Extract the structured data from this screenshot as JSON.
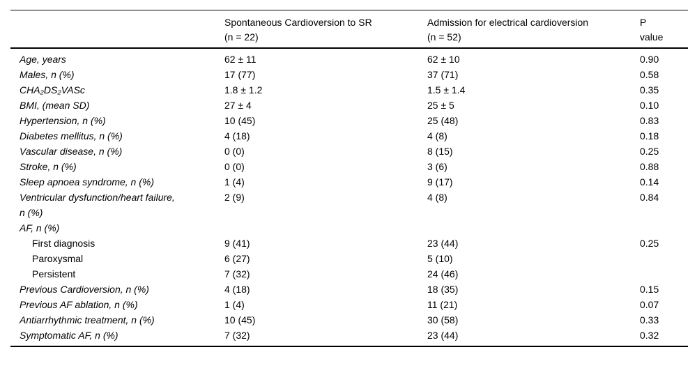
{
  "header": {
    "col_category": "",
    "col_spontaneous": "Spontaneous Cardioversion to SR\n(n = 22)",
    "col_admission": "Admission for electrical cardioversion\n(n = 52)",
    "col_pvalue": "P\nvalue"
  },
  "rows": [
    {
      "label": "Age, years",
      "spontaneous": "62 ± 11",
      "admission": "62 ± 10",
      "p_value": "0.90",
      "italic": true,
      "indent": false
    },
    {
      "label": "Males, n (%)",
      "spontaneous": "17 (77)",
      "admission": "37 (71)",
      "p_value": "0.58",
      "italic": true,
      "indent": false
    },
    {
      "label": "CHA₂DS₂VASc",
      "spontaneous": "1.8 ± 1.2",
      "admission": "1.5 ± 1.4",
      "p_value": "0.35",
      "italic": true,
      "indent": false
    },
    {
      "label": "BMI, (mean SD)",
      "spontaneous": "27 ± 4",
      "admission": "25 ± 5",
      "p_value": "0.10",
      "italic": true,
      "indent": false
    },
    {
      "label": "Hypertension, n (%)",
      "spontaneous": "10 (45)",
      "admission": "25 (48)",
      "p_value": "0.83",
      "italic": true,
      "indent": false
    },
    {
      "label": "Diabetes mellitus, n (%)",
      "spontaneous": "4 (18)",
      "admission": "4 (8)",
      "p_value": "0.18",
      "italic": true,
      "indent": false
    },
    {
      "label": "Vascular disease, n (%)",
      "spontaneous": "0 (0)",
      "admission": "8 (15)",
      "p_value": "0.25",
      "italic": true,
      "indent": false
    },
    {
      "label": "Stroke, n (%)",
      "spontaneous": "0 (0)",
      "admission": "3 (6)",
      "p_value": "0.88",
      "italic": true,
      "indent": false
    },
    {
      "label": "Sleep apnoea syndrome, n (%)",
      "spontaneous": "1 (4)",
      "admission": "9 (17)",
      "p_value": "0.14",
      "italic": true,
      "indent": false
    },
    {
      "label": "Ventricular dysfunction/heart failure,\nn (%)",
      "spontaneous": "2 (9)",
      "admission": "4 (8)",
      "p_value": "0.84",
      "italic": true,
      "indent": false
    },
    {
      "label": "AF, n (%)",
      "spontaneous": "",
      "admission": "",
      "p_value": "",
      "italic": true,
      "indent": false
    },
    {
      "label": "First diagnosis",
      "spontaneous": "9 (41)",
      "admission": "23 (44)",
      "p_value": "0.25",
      "italic": false,
      "indent": true
    },
    {
      "label": "Paroxysmal",
      "spontaneous": "6 (27)",
      "admission": "5 (10)",
      "p_value": "",
      "italic": false,
      "indent": true
    },
    {
      "label": "Persistent",
      "spontaneous": "7 (32)",
      "admission": "24 (46)",
      "p_value": "",
      "italic": false,
      "indent": true
    },
    {
      "label": "Previous Cardioversion, n (%)",
      "spontaneous": "4 (18)",
      "admission": "18 (35)",
      "p_value": "0.15",
      "italic": true,
      "indent": false
    },
    {
      "label": "Previous AF ablation, n (%)",
      "spontaneous": "1 (4)",
      "admission": "11 (21)",
      "p_value": "0.07",
      "italic": true,
      "indent": false
    },
    {
      "label": "Antiarrhythmic treatment, n (%)",
      "spontaneous": "10 (45)",
      "admission": "30 (58)",
      "p_value": "0.33",
      "italic": true,
      "indent": false
    },
    {
      "label": "Symptomatic AF, n (%)",
      "spontaneous": "7 (32)",
      "admission": "23 (44)",
      "p_value": "0.32",
      "italic": true,
      "indent": false
    }
  ],
  "colors": {
    "text": "#000000",
    "rule": "#000000",
    "background": "#ffffff"
  }
}
